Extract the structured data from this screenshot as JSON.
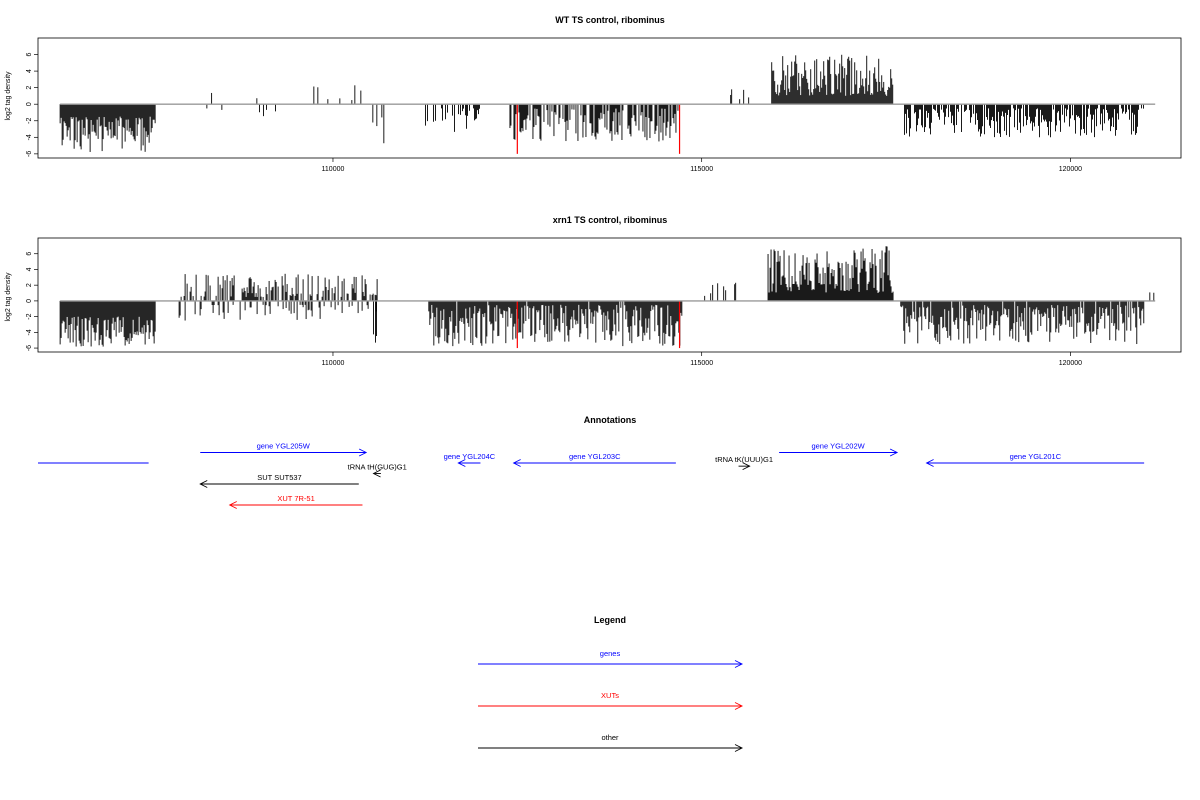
{
  "chart_data": [
    {
      "type": "bar",
      "title": "WT TS control, ribominus",
      "ylabel": "log2 tag density",
      "xlabel": "",
      "xlim": [
        106000,
        121500
      ],
      "ylim": [
        -6.5,
        8
      ],
      "yticks": [
        -6,
        -4,
        -2,
        0,
        2,
        4,
        6
      ],
      "xticks": [
        110000,
        115000,
        120000
      ],
      "grid": false,
      "profile": [
        {
          "from": 106300,
          "to": 107600,
          "sign": -1,
          "min": 1.5,
          "max": 5.8,
          "density": 1.0
        },
        {
          "from": 108100,
          "to": 108500,
          "sign": -1,
          "min": 0.5,
          "max": 1.8,
          "density": 0.1
        },
        {
          "from": 108300,
          "to": 108400,
          "sign": 1,
          "min": 1.0,
          "max": 1.6,
          "density": 0.3
        },
        {
          "from": 108800,
          "to": 109300,
          "sign": -1,
          "min": 0.5,
          "max": 1.5,
          "density": 0.15
        },
        {
          "from": 108900,
          "to": 109000,
          "sign": 1,
          "min": 0.5,
          "max": 1.0,
          "density": 0.3
        },
        {
          "from": 109700,
          "to": 110400,
          "sign": 1,
          "min": 0.5,
          "max": 2.3,
          "density": 0.12
        },
        {
          "from": 110500,
          "to": 110700,
          "sign": -1,
          "min": 1.5,
          "max": 5.0,
          "density": 0.3
        },
        {
          "from": 111200,
          "to": 112000,
          "sign": -1,
          "min": 0.5,
          "max": 3.5,
          "density": 0.4
        },
        {
          "from": 112400,
          "to": 114700,
          "sign": -1,
          "min": 0.5,
          "max": 4.5,
          "density": 0.75
        },
        {
          "from": 115000,
          "to": 115700,
          "sign": 1,
          "min": 0.5,
          "max": 2.0,
          "density": 0.15
        },
        {
          "from": 115950,
          "to": 117600,
          "sign": 1,
          "min": 1.0,
          "max": 6.0,
          "density": 1.0
        },
        {
          "from": 117750,
          "to": 121000,
          "sign": -1,
          "min": 0.5,
          "max": 4.0,
          "density": 0.75
        }
      ],
      "highlights": [
        {
          "x": 112500,
          "value": -6,
          "color": "#ff0000"
        },
        {
          "x": 114700,
          "value": -6,
          "color": "#ff0000"
        }
      ]
    },
    {
      "type": "bar",
      "title": "xrn1 TS control, ribominus",
      "ylabel": "log2 tag density",
      "xlabel": "",
      "xlim": [
        106000,
        121500
      ],
      "ylim": [
        -6.5,
        8
      ],
      "yticks": [
        -6,
        -4,
        -2,
        0,
        2,
        4,
        6
      ],
      "xticks": [
        110000,
        115000,
        120000
      ],
      "grid": false,
      "profile": [
        {
          "from": 106300,
          "to": 107600,
          "sign": -1,
          "min": 2.0,
          "max": 6.0,
          "density": 1.0
        },
        {
          "from": 107900,
          "to": 110600,
          "sign": 1,
          "min": 0.5,
          "max": 3.5,
          "density": 0.55
        },
        {
          "from": 107900,
          "to": 110600,
          "sign": -1,
          "min": 0.5,
          "max": 2.5,
          "density": 0.25
        },
        {
          "from": 110550,
          "to": 110650,
          "sign": -1,
          "min": 4.0,
          "max": 5.6,
          "density": 0.3
        },
        {
          "from": 111300,
          "to": 114750,
          "sign": -1,
          "min": 0.5,
          "max": 5.8,
          "density": 0.95
        },
        {
          "from": 115000,
          "to": 115500,
          "sign": 1,
          "min": 0.5,
          "max": 3.0,
          "density": 0.3
        },
        {
          "from": 115900,
          "to": 117600,
          "sign": 1,
          "min": 1.0,
          "max": 7.0,
          "density": 1.0
        },
        {
          "from": 117700,
          "to": 121000,
          "sign": -1,
          "min": 0.5,
          "max": 5.5,
          "density": 0.9
        },
        {
          "from": 121050,
          "to": 121150,
          "sign": 1,
          "min": 1.0,
          "max": 1.2,
          "density": 0.3
        }
      ],
      "highlights": [
        {
          "x": 112500,
          "value": -6,
          "color": "#ff0000"
        },
        {
          "x": 114700,
          "value": -6,
          "color": "#ff0000"
        }
      ]
    }
  ],
  "annotations": {
    "title": "Annotations",
    "xlim": [
      106000,
      121500
    ],
    "items": [
      {
        "label": "",
        "from": 107500,
        "to": 106000,
        "track": 0,
        "color": "#0000ff",
        "arrow": false
      },
      {
        "label": "gene YGL205W",
        "from": 108200,
        "to": 110450,
        "track": 1,
        "color": "#0000ff",
        "arrow": true
      },
      {
        "label": "gene YGL204C",
        "from": 112000,
        "to": 111700,
        "track": 0,
        "color": "#0000ff",
        "arrow": true
      },
      {
        "label": "gene YGL203C",
        "from": 114650,
        "to": 112450,
        "track": 0,
        "color": "#0000ff",
        "arrow": true
      },
      {
        "label": "gene YGL202W",
        "from": 116050,
        "to": 117650,
        "track": 1,
        "color": "#0000ff",
        "arrow": true
      },
      {
        "label": "gene YGL201C",
        "from": 121000,
        "to": 118050,
        "track": 0,
        "color": "#0000ff",
        "arrow": true
      },
      {
        "label": "tRNA tH(GUG)G1",
        "from": 110650,
        "to": 110550,
        "track": -1,
        "color": "#000000",
        "arrow": true
      },
      {
        "label": "tRNA tK(UUU)G1",
        "from": 115500,
        "to": 115650,
        "track": -0.3,
        "color": "#000000",
        "arrow": true
      },
      {
        "label": "SUT SUT537",
        "from": 110350,
        "to": 108200,
        "track": -2,
        "color": "#000000",
        "arrow": true
      },
      {
        "label": "XUT 7R-51",
        "from": 110400,
        "to": 108600,
        "track": -4,
        "color": "#ff0000",
        "arrow": true
      }
    ]
  },
  "legend": {
    "title": "Legend",
    "entries": [
      {
        "label": "genes",
        "color": "#0000ff"
      },
      {
        "label": "XUTs",
        "color": "#ff0000"
      },
      {
        "label": "other",
        "color": "#000000"
      }
    ]
  }
}
